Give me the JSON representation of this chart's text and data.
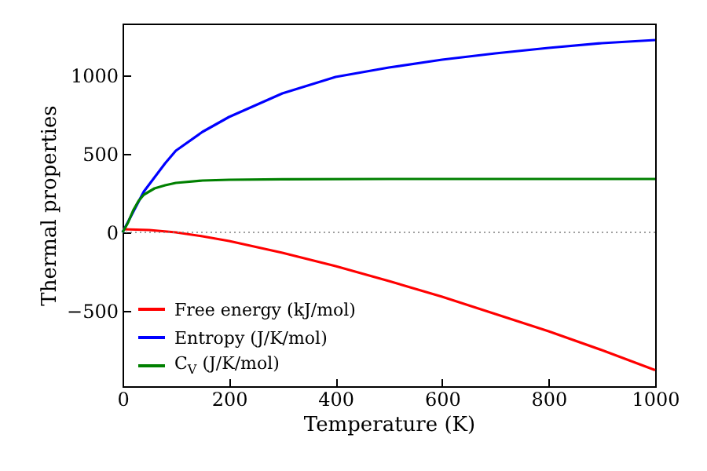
{
  "chart_data": {
    "type": "line",
    "xlabel": "Temperature (K)",
    "ylabel": "Thermal properties",
    "xlim": [
      0,
      1000
    ],
    "xticks": [
      0,
      200,
      400,
      600,
      800,
      1000
    ],
    "ylim": [
      -980,
      1330
    ],
    "yticks": [
      {
        "value": -500,
        "label": "−500"
      },
      0,
      500,
      1000
    ],
    "legend": "bottom left",
    "grid": false,
    "line_style": "solid",
    "ref_lines": [
      {
        "axis": "y",
        "value": 0,
        "color": "#808080",
        "line_style": "dotted"
      }
    ],
    "series": [
      {
        "name": "Free energy (kJ/mol)",
        "color": "#ff0000",
        "x": [
          0,
          50,
          100,
          150,
          200,
          300,
          400,
          500,
          600,
          700,
          800,
          900,
          1000
        ],
        "values": [
          20,
          15,
          0,
          -25,
          -55,
          -130,
          -215,
          -310,
          -410,
          -520,
          -630,
          -750,
          -877
        ]
      },
      {
        "name": "Entropy (J/K/mol)",
        "color": "#0000ff",
        "x": [
          0,
          40,
          60,
          80,
          100,
          150,
          200,
          300,
          400,
          500,
          600,
          700,
          800,
          900,
          1000
        ],
        "values": [
          0,
          260,
          350,
          440,
          520,
          640,
          735,
          885,
          990,
          1050,
          1100,
          1140,
          1175,
          1205,
          1225
        ]
      },
      {
        "name": "C$_{V}$ (J/K/mol)",
        "color": "#008000",
        "x": [
          0,
          10,
          20,
          30,
          40,
          60,
          80,
          100,
          150,
          200,
          300,
          500,
          1000
        ],
        "values": [
          0,
          60,
          140,
          200,
          240,
          280,
          300,
          315,
          330,
          335,
          338,
          340,
          340
        ]
      }
    ]
  }
}
